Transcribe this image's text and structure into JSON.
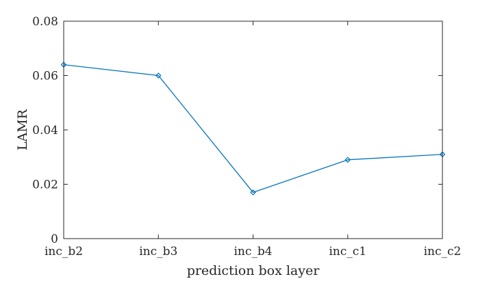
{
  "chart_data": {
    "type": "line",
    "categories": [
      "inc_b2",
      "inc_b3",
      "inc_b4",
      "inc_c1",
      "inc_c2"
    ],
    "series": [
      {
        "values": [
          0.064,
          0.06,
          0.017,
          0.029,
          0.031
        ]
      }
    ],
    "title": "",
    "xlabel": "prediction box layer",
    "ylabel": "LAMR",
    "ylim": [
      0,
      0.08
    ],
    "yticks": [
      0,
      0.02,
      0.04,
      0.06,
      0.08
    ],
    "ytick_labels": [
      "0",
      "0.02",
      "0.04",
      "0.06",
      "0.08"
    ],
    "marker": "diamond",
    "grid": false,
    "box": true,
    "line_color": "#0072BD",
    "axis_color": "#262626"
  }
}
